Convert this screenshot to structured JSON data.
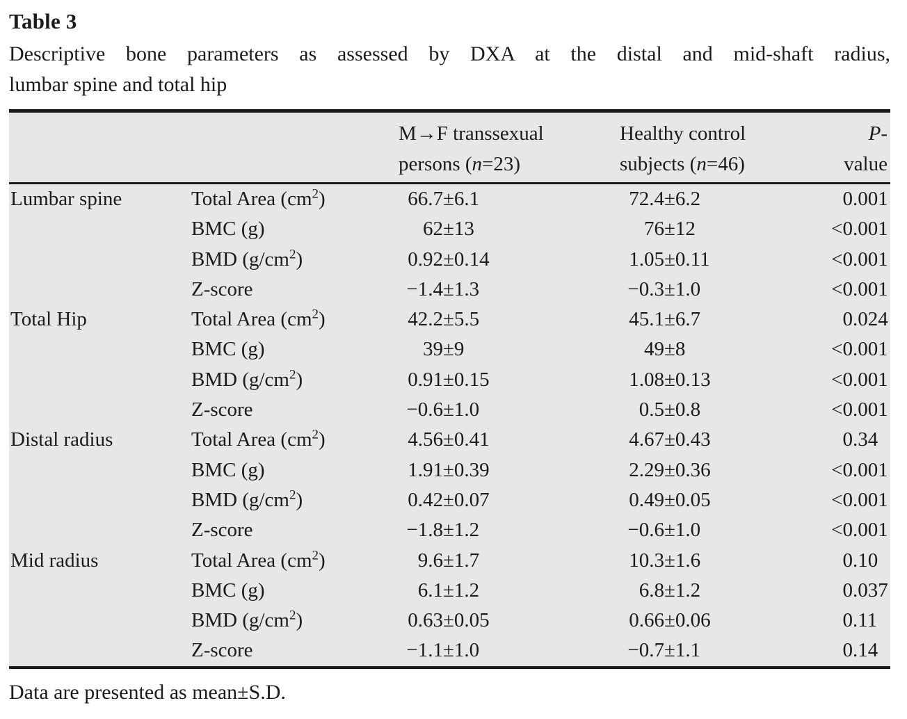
{
  "title": "Table 3",
  "caption_lines": [
    "Descriptive bone parameters as assessed by DXA at the distal and mid-shaft radius,",
    "lumbar spine and total hip"
  ],
  "table": {
    "column_headers": {
      "group1": [
        "M→F transsexual",
        "persons (n=23)"
      ],
      "group2": [
        "Healthy control",
        "subjects (n=46)"
      ],
      "pvalue": "P-value"
    },
    "rows": [
      {
        "region": "Lumbar spine",
        "param": "Total Area (cm²)",
        "group1": "66.7±6.1",
        "group2": "72.4±6.2",
        "p": "0.001"
      },
      {
        "region": "",
        "param": "BMC (g)",
        "group1": "62±13",
        "group2": "76±12",
        "p": "<0.001"
      },
      {
        "region": "",
        "param": "BMD (g/cm²)",
        "group1": "0.92±0.14",
        "group2": "1.05±0.11",
        "p": "<0.001"
      },
      {
        "region": "",
        "param": "Z-score",
        "group1": "−1.4±1.3",
        "group2": "−0.3±1.0",
        "p": "<0.001"
      },
      {
        "region": "Total Hip",
        "param": "Total Area (cm²)",
        "group1": "42.2±5.5",
        "group2": "45.1±6.7",
        "p": "0.024"
      },
      {
        "region": "",
        "param": "BMC (g)",
        "group1": "39±9",
        "group2": "49±8",
        "p": "<0.001"
      },
      {
        "region": "",
        "param": "BMD (g/cm²)",
        "group1": "0.91±0.15",
        "group2": "1.08±0.13",
        "p": "<0.001"
      },
      {
        "region": "",
        "param": "Z-score",
        "group1": "−0.6±1.0",
        "group2": "0.5±0.8",
        "p": "<0.001"
      },
      {
        "region": "Distal radius",
        "param": "Total Area (cm²)",
        "group1": "4.56±0.41",
        "group2": "4.67±0.43",
        "p": "0.34"
      },
      {
        "region": "",
        "param": "BMC (g)",
        "group1": "1.91±0.39",
        "group2": "2.29±0.36",
        "p": "<0.001"
      },
      {
        "region": "",
        "param": "BMD (g/cm²)",
        "group1": "0.42±0.07",
        "group2": "0.49±0.05",
        "p": "<0.001"
      },
      {
        "region": "",
        "param": "Z-score",
        "group1": "−1.8±1.2",
        "group2": "−0.6±1.0",
        "p": "<0.001"
      },
      {
        "region": "Mid radius",
        "param": "Total Area (cm²)",
        "group1": "9.6±1.7",
        "group2": "10.3±1.6",
        "p": "0.10"
      },
      {
        "region": "",
        "param": "BMC (g)",
        "group1": "6.1±1.2",
        "group2": "6.8±1.2",
        "p": "0.037"
      },
      {
        "region": "",
        "param": "BMD (g/cm²)",
        "group1": "0.63±0.05",
        "group2": "0.66±0.06",
        "p": "0.11"
      },
      {
        "region": "",
        "param": "Z-score",
        "group1": "−1.1±1.0",
        "group2": "−0.7±1.1",
        "p": "0.14"
      }
    ]
  },
  "footnote": "Data are presented as mean±S.D.",
  "colors": {
    "table_background": "#e7e7e7",
    "rule": "#1a1a1a",
    "text": "#1b1b1b",
    "page_background": "#ffffff"
  }
}
